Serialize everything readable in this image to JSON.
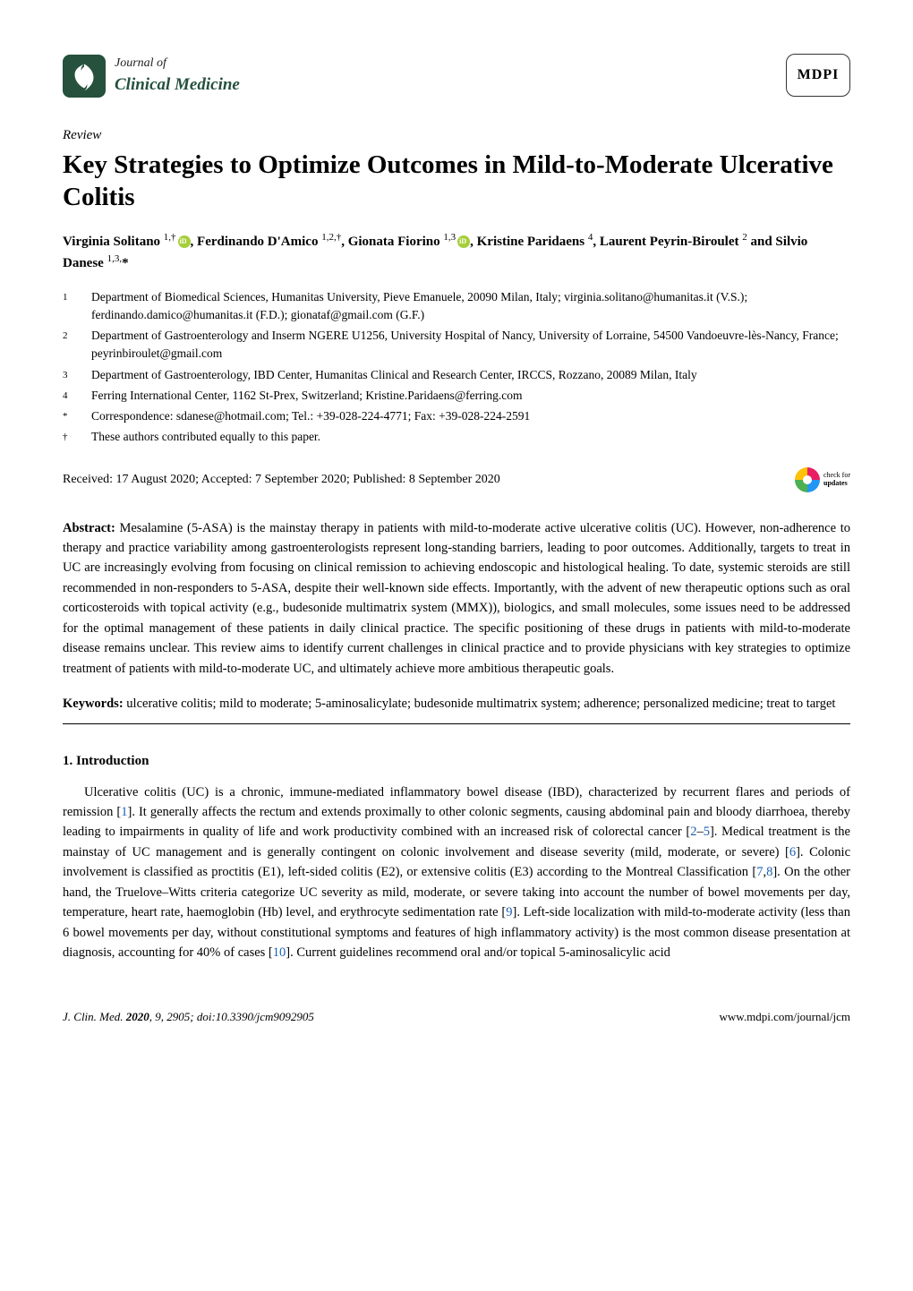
{
  "journal": {
    "prefix": "Journal of",
    "name": "Clinical Medicine"
  },
  "publisher_logo": "MDPI",
  "article_type": "Review",
  "title": "Key Strategies to Optimize Outcomes in Mild-to-Moderate Ulcerative Colitis",
  "authors_html": "Virginia Solitano <sup>1,†</sup><span class='orcid' data-name='orcid-icon' data-interactable='false'></span>, Ferdinando D'Amico <sup>1,2,†</sup>, Gionata Fiorino <sup>1,3</sup><span class='orcid' data-name='orcid-icon' data-interactable='false'></span>, Kristine Paridaens <sup>4</sup>, Laurent Peyrin-Biroulet <sup>2</sup> and Silvio Danese <sup>1,3,</sup>*",
  "affiliations": [
    {
      "num": "1",
      "text": "Department of Biomedical Sciences, Humanitas University, Pieve Emanuele, 20090 Milan, Italy; virginia.solitano@humanitas.it (V.S.); ferdinando.damico@humanitas.it (F.D.); gionataf@gmail.com (G.F.)"
    },
    {
      "num": "2",
      "text": "Department of Gastroenterology and Inserm NGERE U1256, University Hospital of Nancy, University of Lorraine, 54500 Vandoeuvre-lès-Nancy, France; peyrinbiroulet@gmail.com"
    },
    {
      "num": "3",
      "text": "Department of Gastroenterology, IBD Center, Humanitas Clinical and Research Center, IRCCS, Rozzano, 20089 Milan, Italy"
    },
    {
      "num": "4",
      "text": "Ferring International Center, 1162 St-Prex, Switzerland; Kristine.Paridaens@ferring.com"
    },
    {
      "num": "*",
      "text": "Correspondence: sdanese@hotmail.com; Tel.: +39-028-224-4771; Fax: +39-028-224-2591"
    },
    {
      "num": "†",
      "text": "These authors contributed equally to this paper."
    }
  ],
  "dates": "Received: 17 August 2020; Accepted: 7 September 2020; Published: 8 September 2020",
  "check_updates": {
    "line1": "check for",
    "line2": "updates"
  },
  "abstract": {
    "label": "Abstract:",
    "text": "Mesalamine (5-ASA) is the mainstay therapy in patients with mild-to-moderate active ulcerative colitis (UC). However, non-adherence to therapy and practice variability among gastroenterologists represent long-standing barriers, leading to poor outcomes. Additionally, targets to treat in UC are increasingly evolving from focusing on clinical remission to achieving endoscopic and histological healing. To date, systemic steroids are still recommended in non-responders to 5-ASA, despite their well-known side effects. Importantly, with the advent of new therapeutic options such as oral corticosteroids with topical activity (e.g., budesonide multimatrix system (MMX)), biologics, and small molecules, some issues need to be addressed for the optimal management of these patients in daily clinical practice. The specific positioning of these drugs in patients with mild-to-moderate disease remains unclear. This review aims to identify current challenges in clinical practice and to provide physicians with key strategies to optimize treatment of patients with mild-to-moderate UC, and ultimately achieve more ambitious therapeutic goals."
  },
  "keywords": {
    "label": "Keywords:",
    "text": "ulcerative colitis; mild to moderate; 5-aminosalicylate; budesonide multimatrix system; adherence; personalized medicine; treat to target"
  },
  "section1": {
    "heading": "1. Introduction",
    "body_html": "Ulcerative colitis (UC) is a chronic, immune-mediated inflammatory bowel disease (IBD), characterized by recurrent flares and periods of remission [<a class='cite' data-name='citation-link' data-interactable='true'>1</a>]. It generally affects the rectum and extends proximally to other colonic segments, causing abdominal pain and bloody diarrhoea, thereby leading to impairments in quality of life and work productivity combined with an increased risk of colorectal cancer [<a class='cite' data-name='citation-link' data-interactable='true'>2</a>–<a class='cite' data-name='citation-link' data-interactable='true'>5</a>]. Medical treatment is the mainstay of UC management and is generally contingent on colonic involvement and disease severity (mild, moderate, or severe) [<a class='cite' data-name='citation-link' data-interactable='true'>6</a>]. Colonic involvement is classified as proctitis (E1), left-sided colitis (E2), or extensive colitis (E3) according to the Montreal Classification [<a class='cite' data-name='citation-link' data-interactable='true'>7</a>,<a class='cite' data-name='citation-link' data-interactable='true'>8</a>]. On the other hand, the Truelove–Witts criteria categorize UC severity as mild, moderate, or severe taking into account the number of bowel movements per day, temperature, heart rate, haemoglobin (Hb) level, and erythrocyte sedimentation rate [<a class='cite' data-name='citation-link' data-interactable='true'>9</a>]. Left-side localization with mild-to-moderate activity (less than 6 bowel movements per day, without constitutional symptoms and features of high inflammatory activity) is the most common disease presentation at diagnosis, accounting for 40% of cases [<a class='cite' data-name='citation-link' data-interactable='true'>10</a>]. Current guidelines recommend oral and/or topical 5-aminosalicylic acid"
  },
  "footer": {
    "left_html": "<i>J. Clin. Med.</i> <b>2020</b>, <i>9</i>, 2905; doi:10.3390/jcm9092905",
    "right": "www.mdpi.com/journal/jcm"
  },
  "colors": {
    "journal_brand": "#25513d",
    "orcid": "#a6ce39",
    "cite_link": "#1a5fb4"
  }
}
